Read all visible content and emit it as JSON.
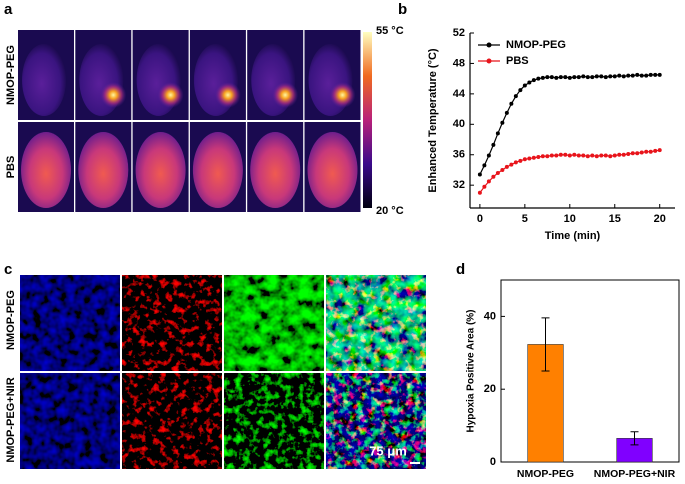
{
  "panel_labels": [
    "a",
    "b",
    "c",
    "d"
  ],
  "thermal": {
    "rows": [
      "NMOP-PEG",
      "PBS"
    ],
    "colorbar": {
      "max_label": "55 °C",
      "min_label": "20 °C"
    }
  },
  "fluorescence": {
    "rows": [
      "NMOP-PEG",
      "NMOP-PEG+NIR"
    ],
    "scale_bar": "75 μm"
  },
  "chart_data": [
    {
      "type": "line",
      "xlabel": "Time (min)",
      "ylabel": "Enhanced Temperature (°C)",
      "x": [
        0,
        0.5,
        1,
        1.5,
        2,
        2.5,
        3,
        3.5,
        4,
        4.5,
        5,
        5.5,
        6,
        6.5,
        7,
        7.5,
        8,
        8.5,
        9,
        9.5,
        10,
        10.5,
        11,
        11.5,
        12,
        12.5,
        13,
        13.5,
        14,
        14.5,
        15,
        15.5,
        16,
        16.5,
        17,
        17.5,
        18,
        18.5,
        19,
        19.5,
        20
      ],
      "series": [
        {
          "name": "NMOP-PEG",
          "color": "#000000",
          "values": [
            33.4,
            34.6,
            35.9,
            37.3,
            38.8,
            40.2,
            41.5,
            42.7,
            43.7,
            44.5,
            45.1,
            45.5,
            45.8,
            46.0,
            46.1,
            46.2,
            46.2,
            46.1,
            46.2,
            46.2,
            46.1,
            46.2,
            46.2,
            46.3,
            46.2,
            46.2,
            46.3,
            46.3,
            46.2,
            46.3,
            46.3,
            46.4,
            46.3,
            46.4,
            46.4,
            46.5,
            46.4,
            46.4,
            46.5,
            46.5,
            46.5
          ]
        },
        {
          "name": "PBS",
          "color": "#e8141b",
          "values": [
            31.0,
            31.8,
            32.5,
            33.1,
            33.6,
            34.0,
            34.4,
            34.7,
            35.0,
            35.2,
            35.4,
            35.5,
            35.6,
            35.7,
            35.8,
            35.8,
            35.9,
            35.9,
            36.0,
            36.0,
            35.9,
            36.0,
            35.9,
            35.9,
            35.8,
            35.9,
            35.8,
            35.9,
            35.9,
            35.8,
            35.9,
            36.0,
            36.0,
            36.1,
            36.2,
            36.2,
            36.3,
            36.4,
            36.4,
            36.5,
            36.6
          ]
        }
      ],
      "xlim": [
        -1.1,
        21.7
      ],
      "xticks": [
        0,
        5,
        10,
        15,
        20
      ],
      "ylim": [
        29,
        52
      ],
      "yticks": [
        32,
        36,
        40,
        44,
        48,
        52
      ],
      "legend": "upper left"
    },
    {
      "type": "bar",
      "ylabel": "Hypoxia Positive Area (%)",
      "categories": [
        "NMOP-PEG",
        "NMOP-PEG+NIR"
      ],
      "values": [
        32.3,
        6.5
      ],
      "errors": [
        7.3,
        1.8
      ],
      "colors": [
        "#ff8000",
        "#8000ff"
      ],
      "ylim": [
        0,
        50
      ],
      "yticks": [
        0,
        20,
        40
      ]
    }
  ]
}
